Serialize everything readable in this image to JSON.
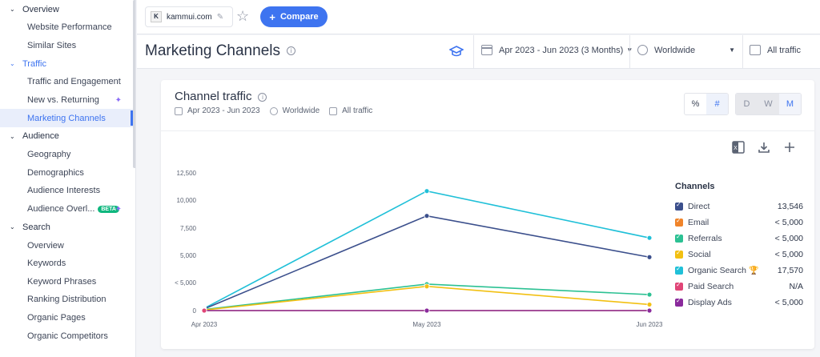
{
  "sidebar": {
    "sections": [
      {
        "label": "Overview",
        "items": [
          "Website Performance",
          "Similar Sites"
        ]
      },
      {
        "label": "Traffic",
        "items": [
          "Traffic and Engagement",
          "New vs. Returning",
          "Marketing Channels"
        ]
      },
      {
        "label": "Audience",
        "items": [
          "Geography",
          "Demographics",
          "Audience Interests",
          "Audience Overl..."
        ]
      },
      {
        "label": "Search",
        "items": [
          "Overview",
          "Keywords",
          "Keyword Phrases",
          "Ranking Distribution",
          "Organic Pages",
          "Organic Competitors"
        ]
      }
    ],
    "beta_badge": "BETA"
  },
  "topbar": {
    "domain": "kammui.com",
    "compare_label": "Compare"
  },
  "header": {
    "title": "Marketing Channels",
    "date_range": "Apr 2023 - Jun 2023 (3 Months)",
    "geo": "Worldwide",
    "traffic": "All traffic"
  },
  "card": {
    "title": "Channel traffic",
    "meta_date": "Apr 2023 - Jun 2023",
    "meta_geo": "Worldwide",
    "meta_traffic": "All traffic",
    "toggle_percent": "%",
    "toggle_number": "#",
    "period_d": "D",
    "period_w": "W",
    "period_m": "M"
  },
  "legend": {
    "title": "Channels",
    "rows": [
      {
        "name": "Direct",
        "value": "13,546",
        "color": "#3b4f8c"
      },
      {
        "name": "Email",
        "value": "< 5,000",
        "color": "#f0842a"
      },
      {
        "name": "Referrals",
        "value": "< 5,000",
        "color": "#2cc193"
      },
      {
        "name": "Social",
        "value": "< 5,000",
        "color": "#f2c012"
      },
      {
        "name": "Organic Search",
        "value": "17,570",
        "color": "#20c0d8"
      },
      {
        "name": "Paid Search",
        "value": "N/A",
        "color": "#e04577"
      },
      {
        "name": "Display Ads",
        "value": "< 5,000",
        "color": "#8a2a9c"
      }
    ]
  },
  "chart_data": {
    "type": "line",
    "x": [
      "Apr 2023",
      "May 2023",
      "Jun 2023"
    ],
    "y_ticks": [
      "12,500",
      "10,000",
      "7,500",
      "5,000",
      "< 5,000",
      "0"
    ],
    "ylim": [
      0,
      12500
    ],
    "series": [
      {
        "name": "Organic Search",
        "color": "#20c0d8",
        "values": [
          200,
          10850,
          6600
        ]
      },
      {
        "name": "Direct",
        "color": "#3b4f8c",
        "values": [
          150,
          8600,
          4850
        ]
      },
      {
        "name": "Referrals",
        "color": "#2cc193",
        "values": [
          100,
          2400,
          1450
        ]
      },
      {
        "name": "Social",
        "color": "#f2c012",
        "values": [
          50,
          2200,
          550
        ]
      },
      {
        "name": "Email",
        "color": "#f0842a",
        "values": [
          0,
          0,
          0
        ]
      },
      {
        "name": "Display Ads",
        "color": "#8a2a9c",
        "values": [
          0,
          0,
          0
        ]
      },
      {
        "name": "Paid Search",
        "color": "#e04577",
        "values": [
          0,
          null,
          null
        ]
      }
    ]
  }
}
